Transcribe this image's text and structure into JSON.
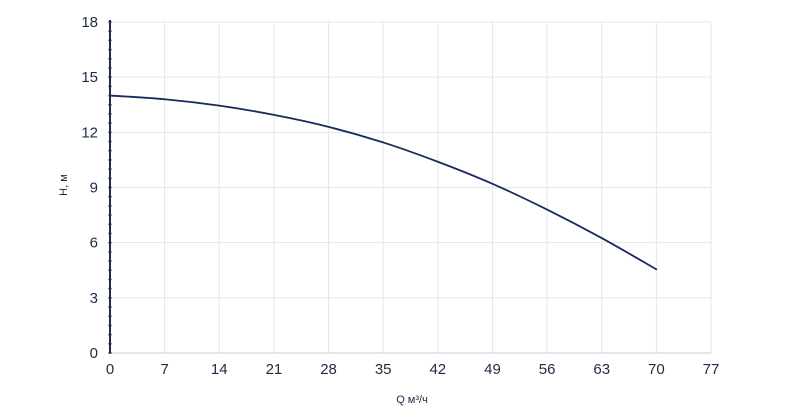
{
  "chart_data": {
    "type": "line",
    "title": "",
    "xlabel": "Q м³/ч",
    "ylabel": "H, м",
    "xlim": [
      0,
      77
    ],
    "ylim": [
      0,
      18
    ],
    "x_ticks": [
      0,
      7,
      14,
      21,
      28,
      35,
      42,
      49,
      56,
      63,
      70,
      77
    ],
    "x_tick_labels": [
      "0",
      "7",
      "14",
      "21",
      "28",
      "35",
      "42",
      "49",
      "56",
      "63",
      "70",
      "77"
    ],
    "y_ticks": [
      0,
      3,
      6,
      9,
      12,
      15,
      18
    ],
    "y_tick_labels": [
      "0",
      "3",
      "6",
      "9",
      "12",
      "15",
      "18"
    ],
    "grid": true,
    "series": [
      {
        "color": "#1a2a5e",
        "x": [
          0,
          7,
          14,
          21,
          28,
          35,
          42,
          49,
          56,
          63,
          70
        ],
        "y": [
          14.0,
          13.8,
          13.45,
          12.95,
          12.3,
          11.45,
          10.4,
          9.2,
          7.8,
          6.25,
          4.55
        ]
      }
    ],
    "colors": {
      "line": "#1a2a5e",
      "grid": "#e3e6ec",
      "axis": "#1f2a44",
      "text": "#1f2a44"
    }
  }
}
